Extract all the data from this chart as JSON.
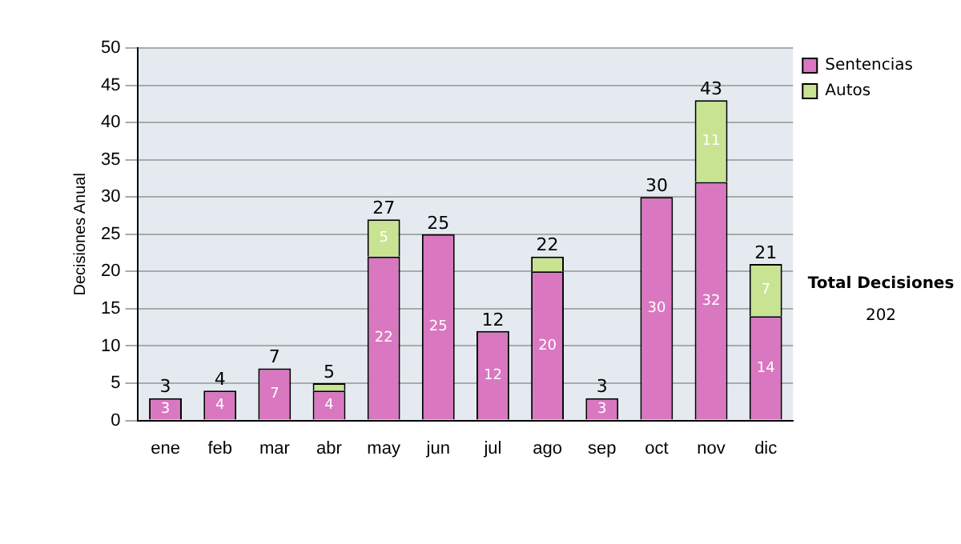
{
  "chart_data": {
    "type": "bar",
    "stacked": true,
    "ylabel": "Decisiones Anual",
    "categories": [
      "ene",
      "feb",
      "mar",
      "abr",
      "may",
      "jun",
      "jul",
      "ago",
      "sep",
      "oct",
      "nov",
      "dic"
    ],
    "series": [
      {
        "name": "Sentencias",
        "color": "#d977c0",
        "values": [
          3,
          4,
          7,
          4,
          22,
          25,
          12,
          20,
          3,
          30,
          32,
          14
        ],
        "value_labels": [
          "3",
          "4",
          "7",
          "4",
          "22",
          "25",
          "12",
          "20",
          "3",
          "30",
          "32",
          "14"
        ]
      },
      {
        "name": "Autos",
        "color": "#c8e392",
        "values": [
          0,
          0,
          0,
          1,
          5,
          0,
          0,
          2,
          0,
          0,
          11,
          7
        ],
        "value_labels": [
          null,
          null,
          null,
          null,
          "5",
          null,
          null,
          null,
          null,
          null,
          "11",
          "7"
        ]
      }
    ],
    "totals": [
      "3",
      "4",
      "7",
      "5",
      "27",
      "25",
      "12",
      "22",
      "3",
      "30",
      "43",
      "21"
    ],
    "ylim": [
      0,
      50
    ],
    "yticks": [
      0,
      5,
      10,
      15,
      20,
      25,
      30,
      35,
      40,
      45,
      50
    ],
    "grid": "y",
    "legend": "right",
    "annotations": [
      "Total Decisiones",
      "202"
    ]
  }
}
